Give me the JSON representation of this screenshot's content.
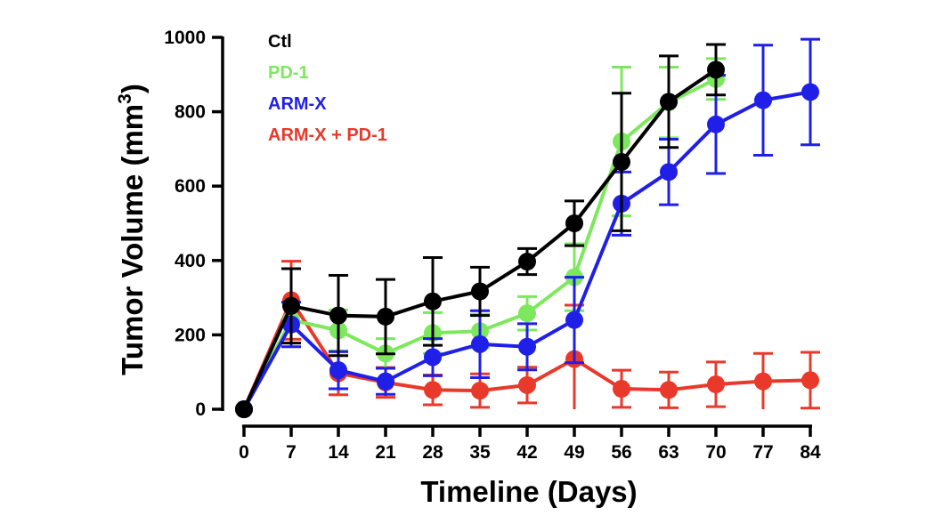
{
  "chart_data": {
    "type": "line",
    "xlabel": "Timeline (Days)",
    "ylabel": "Tumor Volume (mm",
    "ylabel_superscript": "3",
    "ylabel_suffix": ")",
    "xlim": [
      0,
      84
    ],
    "ylim": [
      0,
      1000
    ],
    "xticks": [
      0,
      7,
      14,
      21,
      28,
      35,
      42,
      49,
      56,
      63,
      70,
      77,
      84
    ],
    "yticks": [
      0,
      200,
      400,
      600,
      800,
      1000
    ],
    "legend_position": "top-left",
    "grid": false,
    "series": [
      {
        "name": "ARM-X + PD-1",
        "color": "#e8392b",
        "points": [
          {
            "x": 0,
            "y": 0,
            "err": 0
          },
          {
            "x": 7,
            "y": 293,
            "err": 105
          },
          {
            "x": 14,
            "y": 97,
            "err": 58
          },
          {
            "x": 21,
            "y": 72,
            "err": 40
          },
          {
            "x": 28,
            "y": 52,
            "err": 40
          },
          {
            "x": 35,
            "y": 50,
            "err": 45
          },
          {
            "x": 42,
            "y": 65,
            "err": 48
          },
          {
            "x": 49,
            "y": 135,
            "err": 145
          },
          {
            "x": 56,
            "y": 55,
            "err": 50
          },
          {
            "x": 63,
            "y": 52,
            "err": 48
          },
          {
            "x": 70,
            "y": 67,
            "err": 60
          },
          {
            "x": 77,
            "y": 75,
            "err": 75
          },
          {
            "x": 84,
            "y": 78,
            "err": 75
          }
        ]
      },
      {
        "name": "PD-1",
        "color": "#7de85d",
        "points": [
          {
            "x": 0,
            "y": 0,
            "err": 0
          },
          {
            "x": 7,
            "y": 240,
            "err": 0
          },
          {
            "x": 14,
            "y": 212,
            "err": 55
          },
          {
            "x": 21,
            "y": 150,
            "err": 40
          },
          {
            "x": 28,
            "y": 205,
            "err": 55
          },
          {
            "x": 35,
            "y": 210,
            "err": 45
          },
          {
            "x": 42,
            "y": 258,
            "err": 45
          },
          {
            "x": 49,
            "y": 355,
            "err": 90
          },
          {
            "x": 56,
            "y": 720,
            "err": 200
          },
          {
            "x": 63,
            "y": 825,
            "err": 95
          },
          {
            "x": 70,
            "y": 888,
            "err": 55
          }
        ]
      },
      {
        "name": "ARM-X",
        "color": "#1f1fe8",
        "points": [
          {
            "x": 0,
            "y": 0,
            "err": 0
          },
          {
            "x": 7,
            "y": 228,
            "err": 60
          },
          {
            "x": 14,
            "y": 105,
            "err": 50
          },
          {
            "x": 21,
            "y": 75,
            "err": 35
          },
          {
            "x": 28,
            "y": 140,
            "err": 50
          },
          {
            "x": 35,
            "y": 175,
            "err": 90
          },
          {
            "x": 42,
            "y": 168,
            "err": 62
          },
          {
            "x": 49,
            "y": 240,
            "err": 115
          },
          {
            "x": 56,
            "y": 553,
            "err": 85
          },
          {
            "x": 63,
            "y": 638,
            "err": 88
          },
          {
            "x": 70,
            "y": 766,
            "err": 132
          },
          {
            "x": 77,
            "y": 831,
            "err": 148
          },
          {
            "x": 84,
            "y": 853,
            "err": 142
          }
        ]
      },
      {
        "name": "Ctl",
        "color": "#000000",
        "points": [
          {
            "x": 0,
            "y": 0,
            "err": 0
          },
          {
            "x": 7,
            "y": 278,
            "err": 100
          },
          {
            "x": 14,
            "y": 252,
            "err": 108
          },
          {
            "x": 21,
            "y": 249,
            "err": 100
          },
          {
            "x": 28,
            "y": 290,
            "err": 118
          },
          {
            "x": 35,
            "y": 317,
            "err": 65
          },
          {
            "x": 42,
            "y": 397,
            "err": 35
          },
          {
            "x": 49,
            "y": 500,
            "err": 60
          },
          {
            "x": 56,
            "y": 665,
            "err": 185
          },
          {
            "x": 63,
            "y": 827,
            "err": 123
          },
          {
            "x": 70,
            "y": 913,
            "err": 68
          }
        ]
      }
    ],
    "legend": [
      {
        "name": "Ctl",
        "color": "#000000"
      },
      {
        "name": "PD-1",
        "color": "#7de85d"
      },
      {
        "name": "ARM-X",
        "color": "#1f1fe8"
      },
      {
        "name": "ARM-X + PD-1",
        "color": "#e8392b"
      }
    ]
  }
}
